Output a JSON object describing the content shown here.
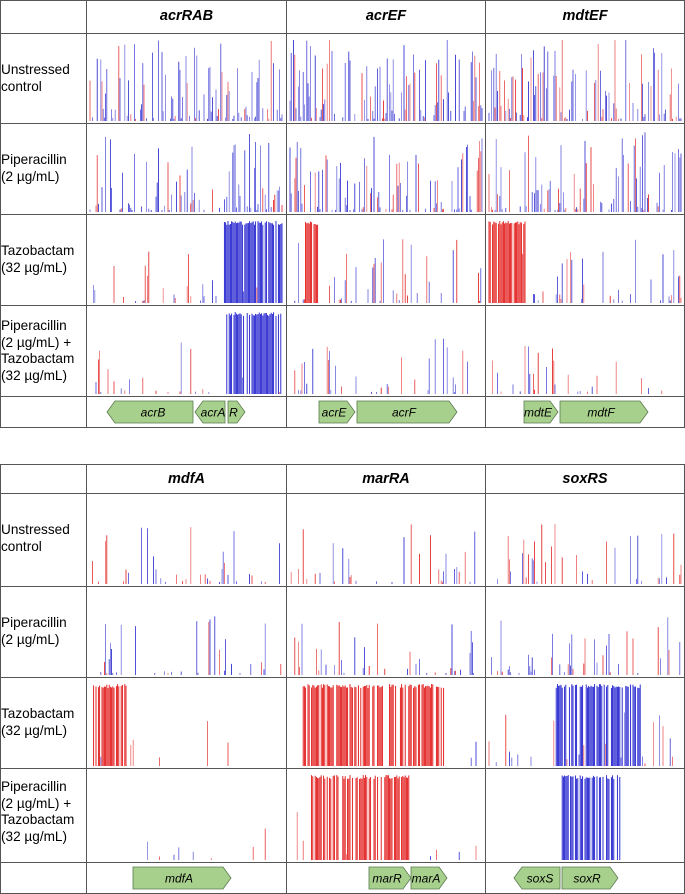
{
  "panels": [
    {
      "columns": [
        "acrRAB",
        "acrEF",
        "mdtEF"
      ],
      "rows": [
        "Unstressed\ncontrol",
        "Piperacillin\n(2 µg/mL)",
        "Tazobactam\n(32 µg/mL)",
        "Piperacillin\n(2 µg/mL) +\nTazobactam\n(32 µg/mL)"
      ],
      "genes": [
        [
          {
            "label": "acrB",
            "dir": "left"
          },
          {
            "label": "acrA",
            "dir": "left"
          },
          {
            "label": "R",
            "dir": "right"
          }
        ],
        [
          {
            "label": "acrE",
            "dir": "right"
          },
          {
            "label": "acrF",
            "dir": "right"
          }
        ],
        [
          {
            "label": "mdtE",
            "dir": "right"
          },
          {
            "label": "mdtF",
            "dir": "right"
          }
        ]
      ]
    },
    {
      "columns": [
        "mdfA",
        "marRA",
        "soxRS"
      ],
      "rows": [
        "Unstressed\ncontrol",
        "Piperacillin\n(2 µg/mL)",
        "Tazobactam\n(32 µg/mL)",
        "Piperacillin\n(2 µg/mL) +\nTazobactam\n(32 µg/mL)"
      ],
      "genes": [
        [
          {
            "label": "mdfA",
            "dir": "right"
          }
        ],
        [
          {
            "label": "marR",
            "dir": "right"
          },
          {
            "label": "marA",
            "dir": "right"
          }
        ],
        [
          {
            "label": "soxS",
            "dir": "left"
          },
          {
            "label": "soxR",
            "dir": "right"
          }
        ]
      ]
    }
  ],
  "colors": {
    "forward": "#1a1acc",
    "reverse": "#e01010",
    "gene_fill": "#a8d08d",
    "gene_stroke": "#5a7a50"
  }
}
